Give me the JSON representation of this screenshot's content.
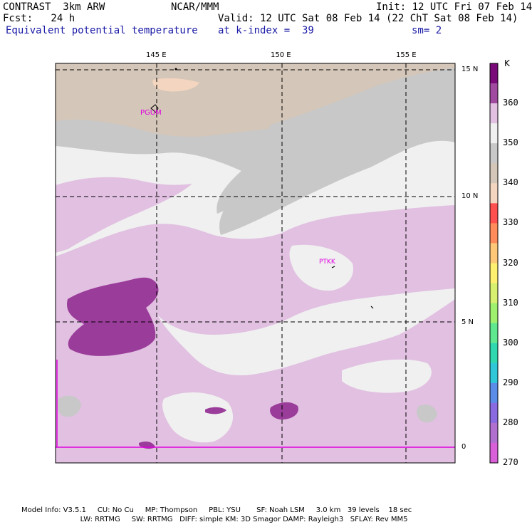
{
  "header": {
    "line1_left": "CONTRAST  3km ARW",
    "line1_center": "NCAR/MMM",
    "line1_right": "Init: 12 UTC Fri 07 Feb 14",
    "line2_left": "Fcst:   24 h",
    "line2_right": "Valid: 12 UTC Sat 08 Feb 14 (22 ChT Sat 08 Feb 14)",
    "line3_left": "Equivalent potential temperature",
    "line3_center": "at k-index =  39",
    "line3_right": "sm= 2"
  },
  "map": {
    "lon_labels": [
      "145 E",
      "150 E",
      "155 E"
    ],
    "lat_labels": [
      "15 N",
      "10 N",
      "5 N",
      "0"
    ],
    "stations": [
      "PGUM",
      "PTKK"
    ],
    "colors": {
      "background": "#f0f0f0",
      "light_lavender": "#e1c0e1",
      "purple": "#9a3c9a",
      "gray": "#c8c8c8",
      "tan": "#d4c6b8",
      "peach": "#f4d6c0",
      "station_text": "#e000e0",
      "boundary": "#e000e0"
    }
  },
  "colorbar": {
    "unit": "K",
    "labels": [
      "360",
      "350",
      "340",
      "330",
      "320",
      "310",
      "300",
      "290",
      "280",
      "270"
    ],
    "colors": [
      "#7a0a7a",
      "#a04aa0",
      "#e1c0e1",
      "#f0f0f0",
      "#c8c8c8",
      "#d4c6b8",
      "#f4d6c0",
      "#ff5050",
      "#ff8c5a",
      "#ffc878",
      "#fff070",
      "#d8f070",
      "#a0f070",
      "#60e890",
      "#30d8b0",
      "#30c8d8",
      "#5a8ce8",
      "#8a6ae0",
      "#b070d0",
      "#d860d8"
    ]
  },
  "footer": {
    "line1": "Model Info: V3.5.1     CU: No Cu     MP: Thompson     PBL: YSU       SF: Noah LSM     3.0 km   39 levels    18 sec",
    "line2": "                          LW: RRTMG     SW: RRTMG   DIFF: simple KM: 3D Smagor DAMP: Rayleigh3   SFLAY: Rev MM5"
  }
}
